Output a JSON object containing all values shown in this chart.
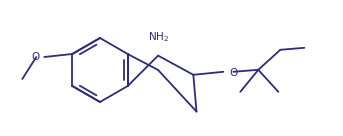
{
  "bg_color": "#ffffff",
  "line_color": "#2d2d7a",
  "text_color": "#2d2d7a",
  "figsize": [
    3.43,
    1.36
  ],
  "dpi": 100
}
